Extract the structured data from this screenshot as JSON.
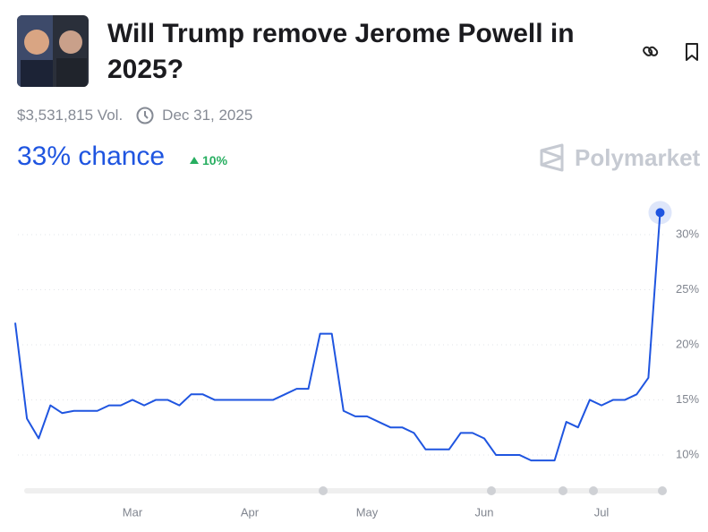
{
  "header": {
    "title": "Will Trump remove Jerome Powell in 2025?",
    "volume": "$3,531,815 Vol.",
    "end_date": "Dec 31, 2025"
  },
  "outcome": {
    "chance": "33% chance",
    "change": "10%"
  },
  "brand": "Polymarket",
  "chart_data": {
    "type": "line",
    "color": "#1f55e0",
    "grid": true,
    "categories": [
      null,
      null,
      null,
      null,
      null,
      null,
      null,
      null,
      null,
      null,
      "Mar",
      null,
      null,
      null,
      null,
      null,
      null,
      null,
      null,
      null,
      "Apr",
      null,
      null,
      null,
      null,
      null,
      null,
      null,
      null,
      null,
      "May",
      null,
      null,
      null,
      null,
      null,
      null,
      null,
      null,
      null,
      "Jun",
      null,
      null,
      null,
      null,
      null,
      null,
      null,
      null,
      null,
      "Jul",
      null,
      null,
      null,
      null,
      null
    ],
    "values": [
      22,
      13.3,
      11.5,
      14.5,
      13.8,
      14,
      14,
      14,
      14.5,
      14.5,
      15,
      14.5,
      15,
      15,
      14.5,
      15.5,
      15.5,
      15,
      15,
      15,
      15,
      15,
      15,
      15.5,
      16,
      16,
      21,
      21,
      14,
      13.5,
      13.5,
      13,
      12.5,
      12.5,
      12,
      10.5,
      10.5,
      10.5,
      12,
      12,
      11.5,
      10,
      10,
      10,
      9.5,
      9.5,
      9.5,
      13,
      12.5,
      15,
      14.5,
      15,
      15,
      15.5,
      17,
      32
    ],
    "ylim": [
      7.8,
      32.6
    ],
    "yticks": [
      {
        "value": 10,
        "label": "10%"
      },
      {
        "value": 15,
        "label": "15%"
      },
      {
        "value": 20,
        "label": "20%"
      },
      {
        "value": 25,
        "label": "25%"
      },
      {
        "value": 30,
        "label": "30%"
      }
    ]
  }
}
